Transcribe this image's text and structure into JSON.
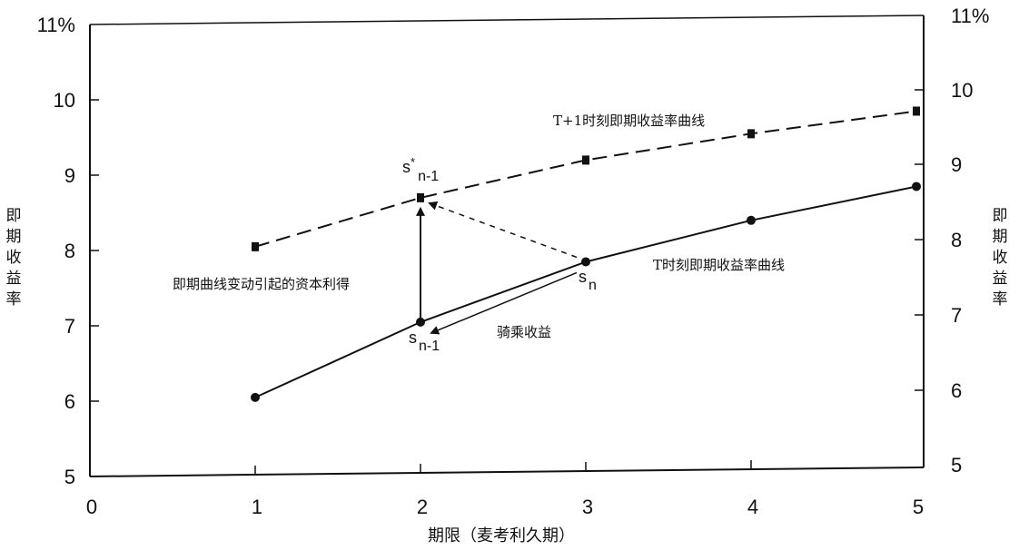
{
  "chart_data": {
    "type": "line",
    "xlabel": "期限（麦考利久期）",
    "ylabel": "即期收益率",
    "x_ticks": [
      "0",
      "1",
      "2",
      "3",
      "4",
      "5"
    ],
    "y_ticks_left": [
      "5",
      "6",
      "7",
      "8",
      "9",
      "10",
      "11%"
    ],
    "y_ticks_right": [
      "5",
      "6",
      "7",
      "8",
      "9",
      "10",
      "11%"
    ],
    "xlim": [
      0,
      5
    ],
    "ylim": [
      5,
      11
    ],
    "series": [
      {
        "name": "T时刻即期收益率曲线",
        "style": "solid",
        "marker": "circle",
        "x": [
          1,
          2,
          3,
          4,
          5
        ],
        "y": [
          6.05,
          7.05,
          7.85,
          8.4,
          8.85
        ]
      },
      {
        "name": "T+1时刻即期收益率曲线",
        "style": "dashed",
        "marker": "square",
        "x": [
          1,
          2,
          3,
          4,
          5
        ],
        "y": [
          8.05,
          8.7,
          9.2,
          9.55,
          9.85
        ]
      }
    ],
    "annotations": {
      "capital_gain": "即期曲线变动引起的资本利得",
      "riding": "骑乘收益",
      "s_n_prime": {
        "main": "s",
        "sup": "*",
        "sub": "n-1"
      },
      "s_n": {
        "main": "s",
        "sub": "n"
      },
      "s_n_minus_1": {
        "main": "s",
        "sub": "n-1"
      }
    },
    "grid": false,
    "legend": "none"
  }
}
